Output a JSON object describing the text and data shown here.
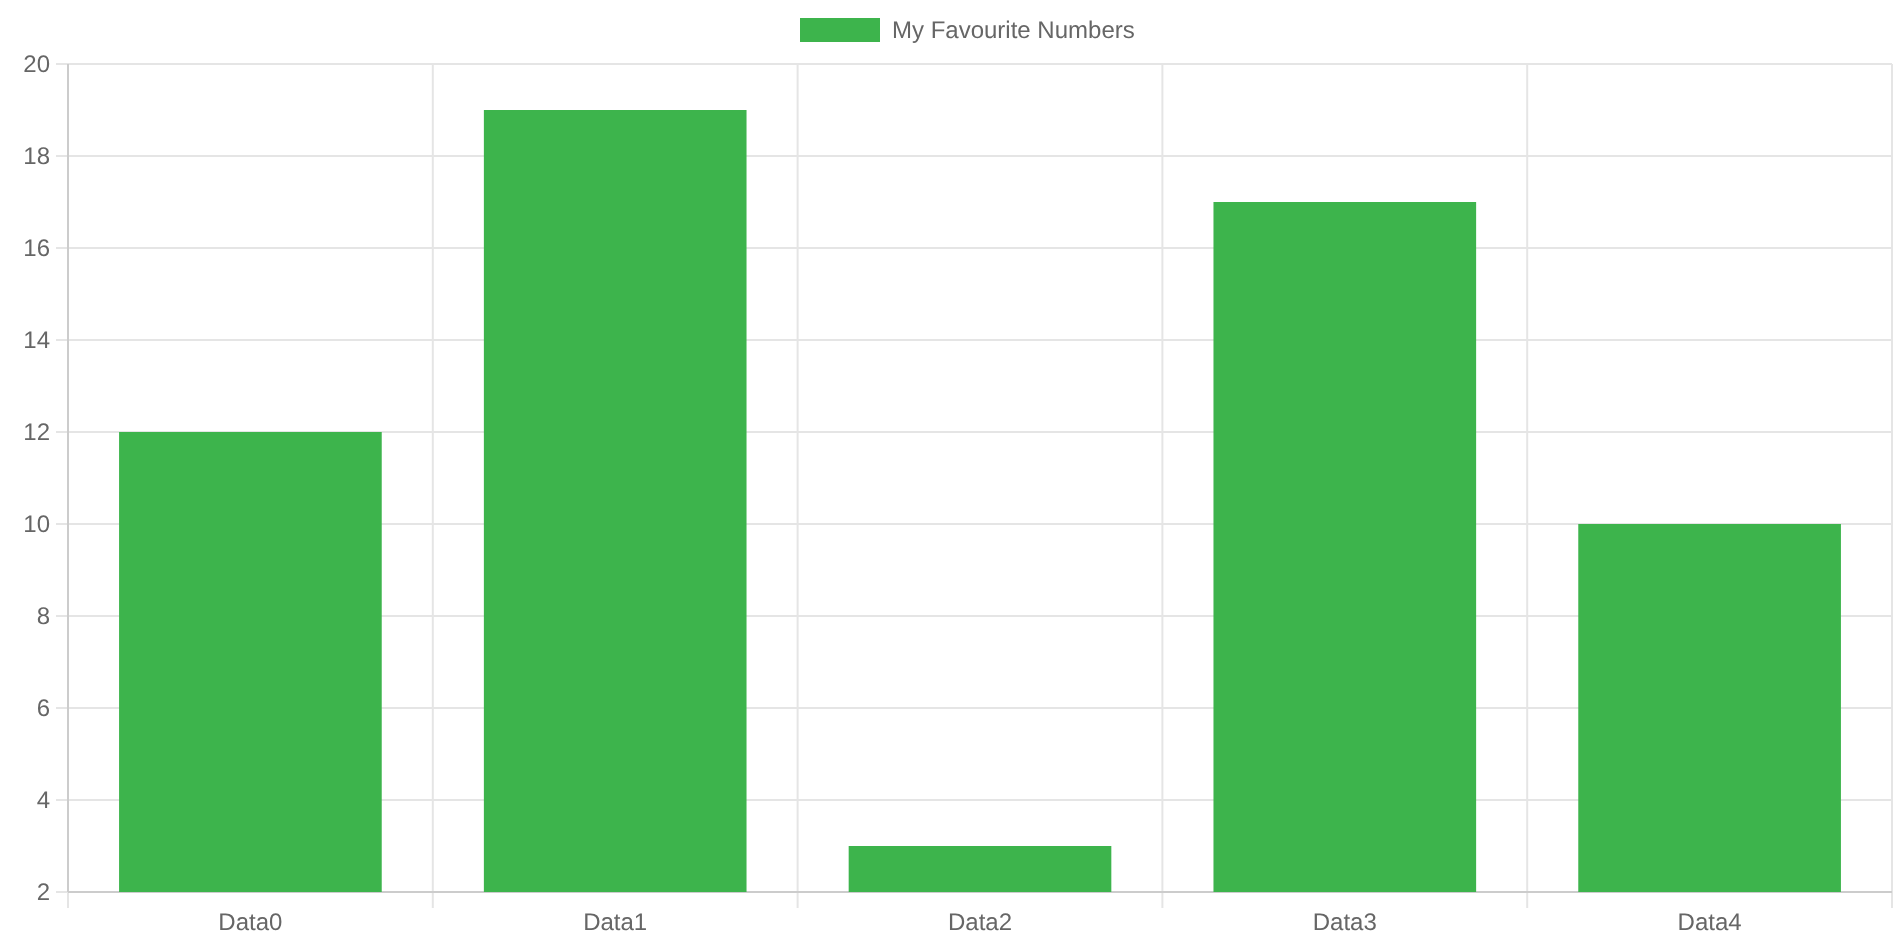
{
  "chart_data": {
    "type": "bar",
    "categories": [
      "Data0",
      "Data1",
      "Data2",
      "Data3",
      "Data4"
    ],
    "series": [
      {
        "name": "My Favourite Numbers",
        "color": "#3db44c",
        "values": [
          12,
          19,
          3,
          17,
          10
        ]
      }
    ],
    "ylim": [
      2,
      20
    ],
    "yticks": [
      2,
      4,
      6,
      8,
      10,
      12,
      14,
      16,
      18,
      20
    ],
    "grid": true,
    "legend": "top"
  }
}
